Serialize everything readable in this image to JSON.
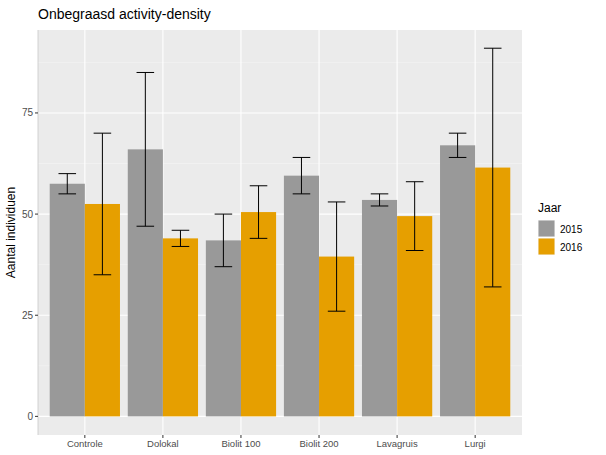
{
  "chart_data": {
    "type": "bar",
    "title": "Onbegraasd activity-density",
    "y_label": "Aantal individuen",
    "legend_title": "Jaar",
    "categories": [
      "Controle",
      "Dolokal",
      "Biolit 100",
      "Biolit 200",
      "Lavagruis",
      "Lurgi"
    ],
    "series": [
      {
        "name": "2015",
        "color": "#999999",
        "values": [
          57.5,
          66,
          43.5,
          59.5,
          53.5,
          67
        ],
        "errors": [
          2.5,
          19,
          6.5,
          4.5,
          1.5,
          3
        ]
      },
      {
        "name": "2016",
        "color": "#E69F00",
        "values": [
          52.5,
          44,
          50.5,
          39.5,
          49.5,
          61.5
        ],
        "errors": [
          17.5,
          2,
          6.5,
          13.5,
          8.5,
          29.5
        ]
      }
    ],
    "ylim": [
      -4.6,
      95.5
    ],
    "yticks": [
      0,
      25,
      50,
      75
    ],
    "grid": true,
    "legend": "right"
  }
}
